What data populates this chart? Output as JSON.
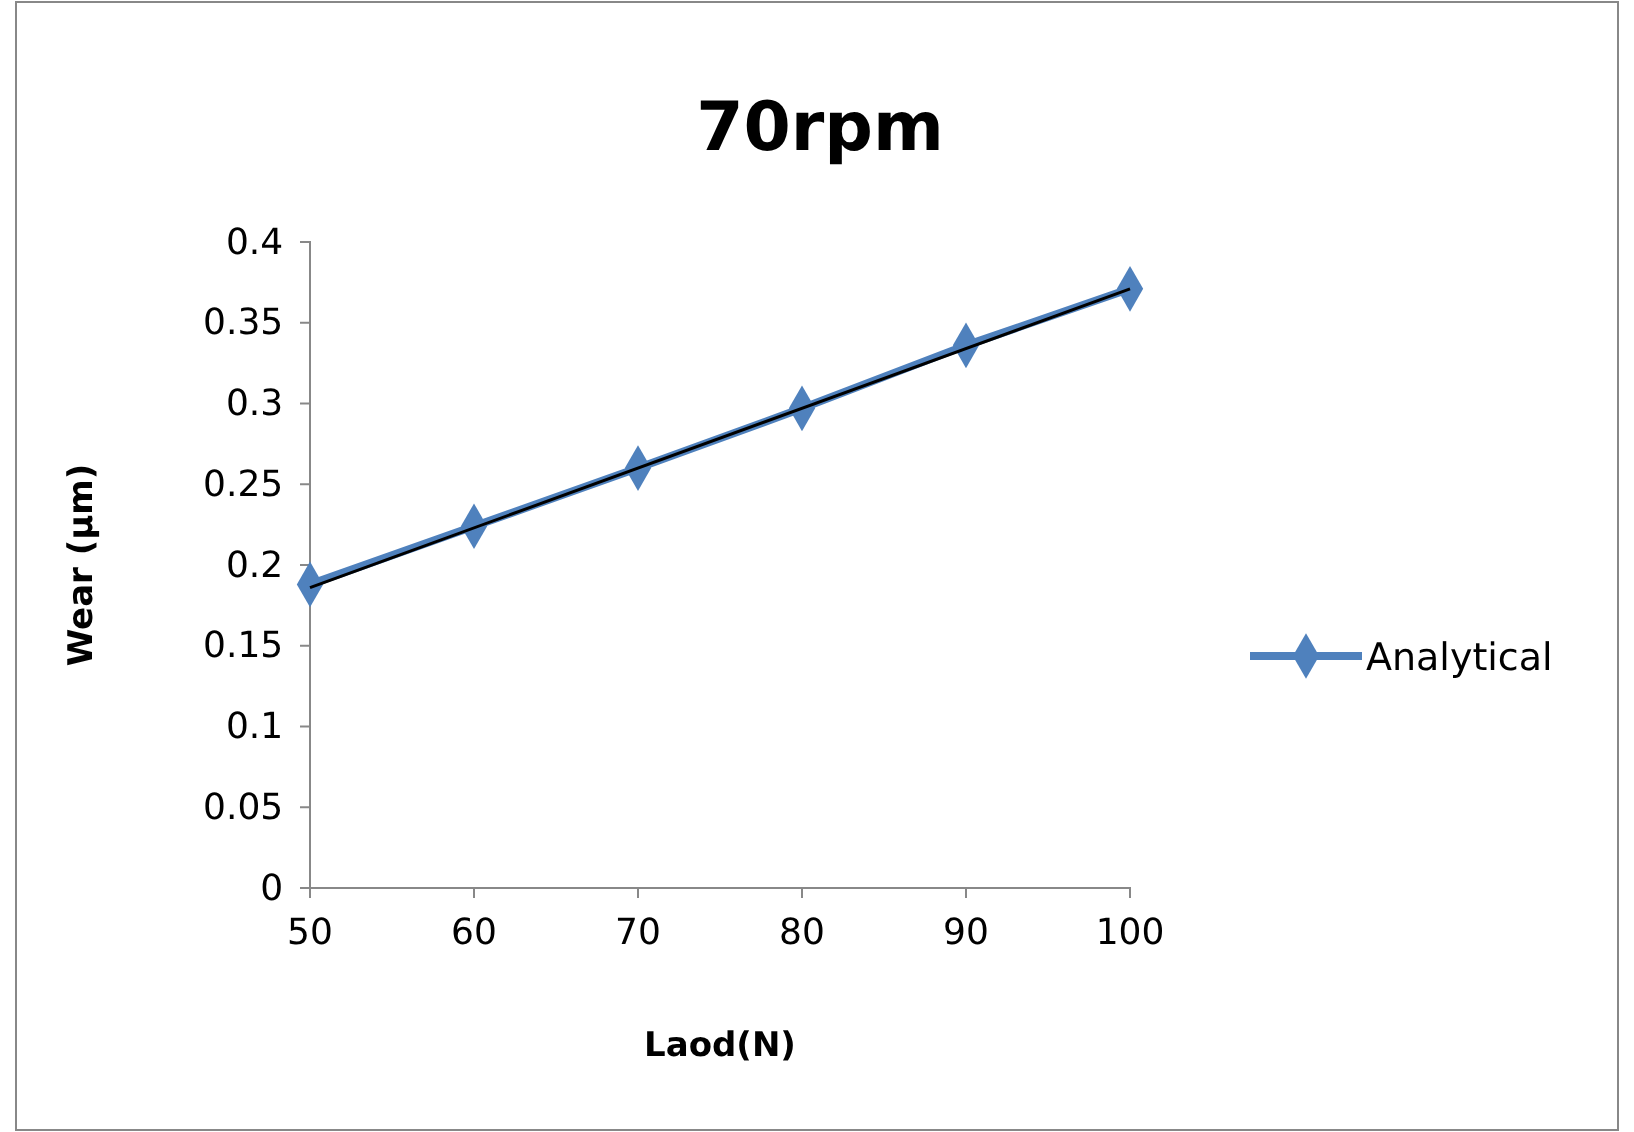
{
  "chart_data": {
    "type": "line",
    "title": "70rpm",
    "xlabel": "Laod(N)",
    "ylabel": "Wear (µm)",
    "x": [
      50,
      60,
      70,
      80,
      90,
      100
    ],
    "series": [
      {
        "name": "Analytical",
        "color": "#4f81bd",
        "values": [
          0.188,
          0.224,
          0.26,
          0.297,
          0.336,
          0.371
        ],
        "marker": "diamond"
      },
      {
        "type": "line",
        "color": "#000000",
        "x": [
          50,
          100
        ],
        "values": [
          0.186,
          0.371
        ],
        "marker": "none"
      }
    ],
    "xlim": [
      50,
      100
    ],
    "xticks": [
      50,
      60,
      70,
      80,
      90,
      100
    ],
    "ylim": [
      0,
      0.4
    ],
    "yticks": [
      0,
      0.05,
      0.1,
      0.15,
      0.2,
      0.25,
      0.3,
      0.35,
      0.4
    ],
    "grid": false,
    "legend": "right"
  }
}
